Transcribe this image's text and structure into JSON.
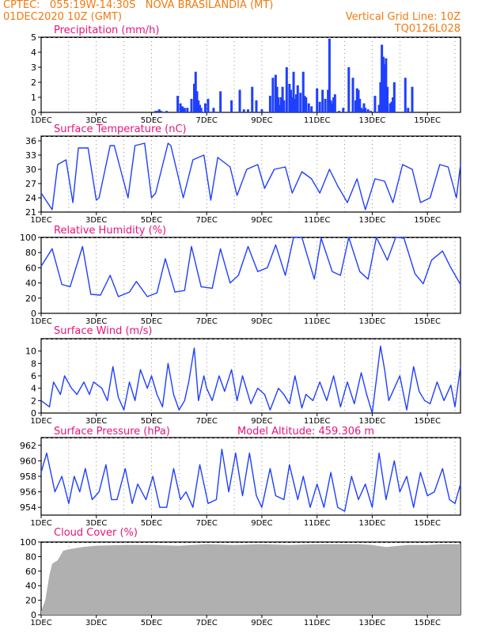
{
  "header": {
    "line1": "CPTEC:   055:19W-14:30S   NOVA BRASILANDIA (MT)",
    "line2_left": "01DEC2020 10Z (GMT)",
    "line2_right": "Vertical Grid Line: 10Z",
    "line3_right": "TQ0126L028"
  },
  "colors": {
    "header": "#f07a10",
    "panel_title": "#e8147a",
    "series": "#1f3fff",
    "cloud": "#b0b0b0",
    "axis": "#000000",
    "grid": "#000000"
  },
  "x_tick_labels": [
    "1DEC",
    "3DEC",
    "5DEC",
    "7DEC",
    "9DEC",
    "11DEC",
    "13DEC",
    "15DEC"
  ],
  "x_tick_days": [
    1,
    3,
    5,
    7,
    9,
    11,
    13,
    15
  ],
  "x_range_days": [
    1,
    16.2
  ],
  "chart_data": [
    {
      "id": "precip",
      "type": "bar",
      "title": "Precipitation (mm/h)",
      "ylim": [
        0,
        5
      ],
      "yticks": [
        0,
        1,
        2,
        3,
        4,
        5
      ],
      "x_days": [
        5.15,
        5.22,
        5.28,
        5.35,
        5.55,
        5.95,
        6.05,
        6.12,
        6.2,
        6.3,
        6.45,
        6.55,
        6.6,
        6.65,
        6.7,
        6.75,
        6.8,
        6.95,
        7.05,
        7.25,
        7.5,
        7.9,
        8.2,
        8.35,
        8.5,
        8.65,
        8.8,
        9.0,
        9.3,
        9.4,
        9.5,
        9.55,
        9.6,
        9.65,
        9.7,
        9.75,
        9.8,
        9.9,
        10.0,
        10.05,
        10.1,
        10.15,
        10.2,
        10.25,
        10.3,
        10.4,
        10.5,
        10.55,
        10.6,
        10.7,
        10.8,
        11.0,
        11.1,
        11.2,
        11.3,
        11.4,
        11.45,
        11.5,
        11.55,
        11.6,
        11.65,
        11.8,
        11.95,
        12.15,
        12.3,
        12.4,
        12.45,
        12.5,
        12.55,
        12.6,
        12.65,
        12.7,
        12.75,
        12.85,
        12.95,
        13.1,
        13.25,
        13.3,
        13.35,
        13.4,
        13.45,
        13.5,
        13.55,
        13.65,
        13.7,
        13.75,
        13.8,
        14.2,
        14.3,
        14.45
      ],
      "values": [
        0.1,
        0.1,
        0.2,
        0.1,
        0.1,
        1.1,
        0.6,
        0.4,
        0.3,
        0.3,
        0.9,
        1.9,
        2.7,
        1.4,
        0.8,
        0.5,
        0.3,
        0.6,
        0.9,
        0.3,
        1.4,
        0.8,
        1.5,
        0.2,
        0.2,
        1.7,
        0.8,
        0.2,
        1.1,
        2.3,
        2.5,
        1.7,
        1.0,
        0.5,
        1.0,
        1.7,
        0.8,
        3.0,
        1.9,
        1.5,
        1.0,
        2.7,
        0.9,
        1.2,
        1.8,
        1.3,
        2.7,
        1.1,
        1.0,
        0.6,
        0.4,
        1.6,
        0.7,
        1.5,
        0.9,
        1.5,
        4.9,
        0.8,
        0.6,
        1.0,
        1.2,
        0.1,
        0.3,
        3.0,
        2.3,
        0.8,
        1.6,
        1.5,
        0.9,
        0.3,
        0.2,
        0.6,
        0.3,
        0.2,
        0.1,
        1.1,
        0.5,
        2.0,
        4.5,
        3.7,
        3.2,
        3.6,
        1.7,
        0.6,
        0.7,
        1.0,
        2.0,
        2.3,
        0.3,
        1.7
      ]
    },
    {
      "id": "temp",
      "type": "line",
      "title": "Surface Temperature (nC)",
      "ylim": [
        21,
        37
      ],
      "yticks": [
        21,
        24,
        27,
        30,
        33,
        36
      ],
      "x_days": [
        1.0,
        1.4,
        1.6,
        1.9,
        2.15,
        2.35,
        2.7,
        3.0,
        3.1,
        3.5,
        3.65,
        4.15,
        4.4,
        4.75,
        5.0,
        5.15,
        5.6,
        5.7,
        6.15,
        6.5,
        6.9,
        7.15,
        7.4,
        7.85,
        8.1,
        8.45,
        8.85,
        9.1,
        9.45,
        9.85,
        10.1,
        10.45,
        10.8,
        11.1,
        11.45,
        11.75,
        12.1,
        12.45,
        12.75,
        13.1,
        13.45,
        13.75,
        14.1,
        14.45,
        14.75,
        15.1,
        15.45,
        15.75,
        16.05,
        16.2
      ],
      "values": [
        25,
        21.5,
        31,
        32,
        23,
        34.5,
        34.5,
        23.5,
        24,
        35,
        35,
        24,
        35,
        35.5,
        24,
        25,
        35.5,
        35,
        24,
        32,
        33,
        23.5,
        32.5,
        30.5,
        24.5,
        30,
        31,
        26,
        30,
        30.5,
        25,
        29.5,
        28,
        25,
        30,
        26.5,
        23,
        28,
        21.5,
        28,
        27.5,
        23,
        31,
        30,
        23,
        24,
        31,
        30.5,
        24,
        31
      ]
    },
    {
      "id": "rh",
      "type": "line",
      "title": "Relative Humidity (%)",
      "ylim": [
        0,
        100
      ],
      "yticks": [
        0,
        20,
        40,
        60,
        80,
        100
      ],
      "x_days": [
        1.0,
        1.4,
        1.75,
        2.05,
        2.5,
        2.8,
        3.15,
        3.5,
        3.8,
        4.2,
        4.45,
        4.85,
        5.2,
        5.5,
        5.85,
        6.2,
        6.45,
        6.8,
        7.2,
        7.5,
        7.85,
        8.15,
        8.5,
        8.85,
        9.2,
        9.5,
        9.85,
        10.15,
        10.45,
        10.9,
        11.15,
        11.55,
        11.85,
        12.15,
        12.55,
        12.85,
        13.15,
        13.55,
        13.85,
        14.15,
        14.55,
        14.85,
        15.15,
        15.55,
        15.85,
        16.2
      ],
      "values": [
        62,
        85,
        38,
        35,
        88,
        25,
        24,
        50,
        22,
        28,
        42,
        22,
        27,
        72,
        28,
        30,
        88,
        35,
        33,
        85,
        40,
        50,
        88,
        55,
        60,
        90,
        50,
        100,
        100,
        45,
        99,
        55,
        50,
        100,
        55,
        45,
        100,
        70,
        100,
        99,
        52,
        39,
        70,
        82,
        60,
        38
      ]
    },
    {
      "id": "wind",
      "type": "line",
      "title": "Surface Wind (m/s)",
      "ylim": [
        0,
        12
      ],
      "yticks": [
        0,
        2,
        4,
        6,
        8,
        10
      ],
      "x_days": [
        1.0,
        1.3,
        1.45,
        1.7,
        1.85,
        2.1,
        2.3,
        2.55,
        2.75,
        2.9,
        3.2,
        3.4,
        3.6,
        3.8,
        4.0,
        4.2,
        4.4,
        4.6,
        4.85,
        5.0,
        5.2,
        5.4,
        5.6,
        5.8,
        6.0,
        6.2,
        6.35,
        6.55,
        6.7,
        6.9,
        7.0,
        7.2,
        7.45,
        7.65,
        7.9,
        8.1,
        8.3,
        8.6,
        8.85,
        9.1,
        9.3,
        9.6,
        9.8,
        10.0,
        10.2,
        10.45,
        10.6,
        10.85,
        11.1,
        11.35,
        11.6,
        11.85,
        12.1,
        12.35,
        12.6,
        12.8,
        13.0,
        13.3,
        13.45,
        13.6,
        13.8,
        14.0,
        14.25,
        14.5,
        14.7,
        14.9,
        15.1,
        15.35,
        15.6,
        15.85,
        16.0,
        16.2
      ],
      "values": [
        2,
        1,
        5,
        3,
        6,
        4,
        3,
        5,
        3,
        5,
        4,
        2,
        7.5,
        2.5,
        0.5,
        5,
        2,
        7,
        4,
        6,
        3,
        1,
        8,
        3,
        0.5,
        2,
        5,
        10.5,
        2,
        6,
        4,
        2,
        6,
        3.5,
        7,
        2,
        6,
        1.5,
        4,
        3,
        0.5,
        4,
        3,
        1.5,
        6,
        0.8,
        3,
        2,
        5,
        2,
        6,
        1,
        5,
        1.5,
        6.5,
        3,
        0,
        10.8,
        7,
        2,
        4,
        6,
        0.5,
        7.5,
        3.5,
        2,
        1.5,
        5,
        2,
        4.5,
        1,
        7.5
      ]
    },
    {
      "id": "pressure",
      "type": "line",
      "title": "Surface Pressure (hPa)",
      "subtitle": "Model Altitude: 459.306 m",
      "ylim": [
        953,
        963
      ],
      "yticks": [
        954,
        956,
        958,
        960,
        962
      ],
      "x_days": [
        1.0,
        1.2,
        1.5,
        1.75,
        2.0,
        2.2,
        2.4,
        2.6,
        2.85,
        3.1,
        3.35,
        3.55,
        3.75,
        4.05,
        4.3,
        4.5,
        4.8,
        5.05,
        5.3,
        5.55,
        5.8,
        6.05,
        6.25,
        6.5,
        6.75,
        7.05,
        7.35,
        7.55,
        7.8,
        8.05,
        8.3,
        8.55,
        8.8,
        9.0,
        9.3,
        9.5,
        9.8,
        10.0,
        10.3,
        10.5,
        10.75,
        11.0,
        11.25,
        11.5,
        11.75,
        12.0,
        12.25,
        12.5,
        12.75,
        13.0,
        13.25,
        13.5,
        13.8,
        14.0,
        14.25,
        14.5,
        14.75,
        15.0,
        15.25,
        15.55,
        15.8,
        16.0,
        16.2
      ],
      "values": [
        958.5,
        961,
        956,
        958,
        954.5,
        958,
        956,
        959,
        955,
        956,
        959.5,
        955,
        955,
        959,
        954.5,
        957,
        955,
        958,
        954,
        954,
        959,
        955,
        956,
        954,
        959.5,
        954.5,
        955,
        961.5,
        956,
        961,
        955.5,
        961,
        955.5,
        954,
        959,
        955.5,
        955,
        959.5,
        955,
        958,
        954,
        957,
        954,
        958.5,
        954,
        953.5,
        958,
        955,
        957,
        954,
        961,
        955,
        960,
        956,
        958,
        954,
        958.5,
        955.5,
        956,
        959,
        955,
        954.5,
        957
      ]
    },
    {
      "id": "cloud",
      "type": "area",
      "title": "Cloud Cover (%)",
      "ylim": [
        0,
        100
      ],
      "yticks": [
        0,
        20,
        40,
        60,
        80,
        100
      ],
      "x_days": [
        1.0,
        1.15,
        1.3,
        1.4,
        1.6,
        1.8,
        2.0,
        2.5,
        3.0,
        4.0,
        5.0,
        6.0,
        6.5,
        7.0,
        8.0,
        9.0,
        10.0,
        11.0,
        12.0,
        12.5,
        13.0,
        13.5,
        14.0,
        14.3,
        14.5,
        15.0,
        15.5,
        16.0,
        16.2
      ],
      "values": [
        5,
        20,
        55,
        70,
        75,
        88,
        90,
        93,
        95,
        96,
        96,
        95,
        96,
        97,
        96,
        97,
        96,
        97,
        97,
        97,
        96,
        93,
        95,
        96,
        96,
        96,
        97,
        97,
        97
      ]
    }
  ]
}
